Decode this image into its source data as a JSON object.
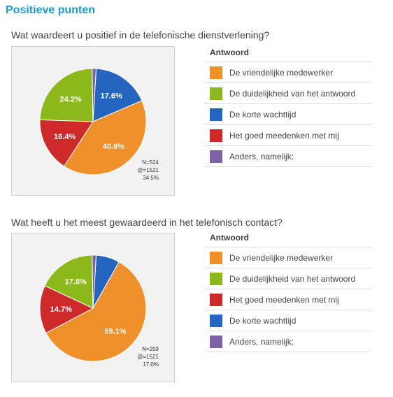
{
  "page": {
    "title": "Positieve punten"
  },
  "colors": {
    "orange": "#f0902a",
    "green": "#8db81a",
    "blue": "#2465bf",
    "red": "#cf2a2a",
    "purple": "#7d62a8"
  },
  "charts": [
    {
      "question": "Wat waardeert u positief in de telefonische dienstverlening?",
      "legend_header": "Antwoord",
      "legend": [
        {
          "label": "De vriendelijke medewerker",
          "color": "#f0902a"
        },
        {
          "label": "De duidelijkheid van het antwoord",
          "color": "#8db81a"
        },
        {
          "label": "De korte wachttijd",
          "color": "#2465bf"
        },
        {
          "label": "Het goed meedenken met mij",
          "color": "#cf2a2a"
        },
        {
          "label": "Anders, namelijk:",
          "color": "#7d62a8"
        }
      ],
      "stats": [
        "N=524",
        "@=1521",
        "34.5%"
      ]
    },
    {
      "question": "Wat heeft u het meest gewaardeerd in het telefonisch contact?",
      "legend_header": "Antwoord",
      "legend": [
        {
          "label": "De vriendelijke medewerker",
          "color": "#f0902a"
        },
        {
          "label": "De duidelijkheid van het antwoord",
          "color": "#8db81a"
        },
        {
          "label": "Het goed meedenken met mij",
          "color": "#cf2a2a"
        },
        {
          "label": "De korte wachttijd",
          "color": "#2465bf"
        },
        {
          "label": "Anders, namelijk:",
          "color": "#7d62a8"
        }
      ],
      "stats": [
        "N=259",
        "@=1521",
        "17.0%"
      ]
    }
  ],
  "chart_data": [
    {
      "type": "pie",
      "slices": [
        {
          "label": "De korte wachttijd",
          "value": 17.6,
          "color": "#2465bf",
          "label_text": "17.6%"
        },
        {
          "label": "De vriendelijke medewerker",
          "value": 40.6,
          "color": "#f0902a",
          "label_text": "40.6%"
        },
        {
          "label": "Het goed meedenken met mij",
          "value": 16.4,
          "color": "#cf2a2a",
          "label_text": "16.4%"
        },
        {
          "label": "De duidelijkheid van het antwoord",
          "value": 24.2,
          "color": "#8db81a",
          "label_text": "24.2%"
        },
        {
          "label": "Anders, namelijk:",
          "value": 1.2,
          "color": "#7d62a8",
          "label_text": ""
        }
      ]
    },
    {
      "type": "pie",
      "slices": [
        {
          "label": "De korte wachttijd",
          "value": 7.2,
          "color": "#2465bf",
          "label_text": ""
        },
        {
          "label": "De vriendelijke medewerker",
          "value": 59.1,
          "color": "#f0902a",
          "label_text": "59.1%"
        },
        {
          "label": "Het goed meedenken met mij",
          "value": 14.7,
          "color": "#cf2a2a",
          "label_text": "14.7%"
        },
        {
          "label": "De duidelijkheid van het antwoord",
          "value": 17.8,
          "color": "#8db81a",
          "label_text": "17.8%"
        },
        {
          "label": "Anders, namelijk:",
          "value": 1.2,
          "color": "#7d62a8",
          "label_text": ""
        }
      ]
    }
  ]
}
